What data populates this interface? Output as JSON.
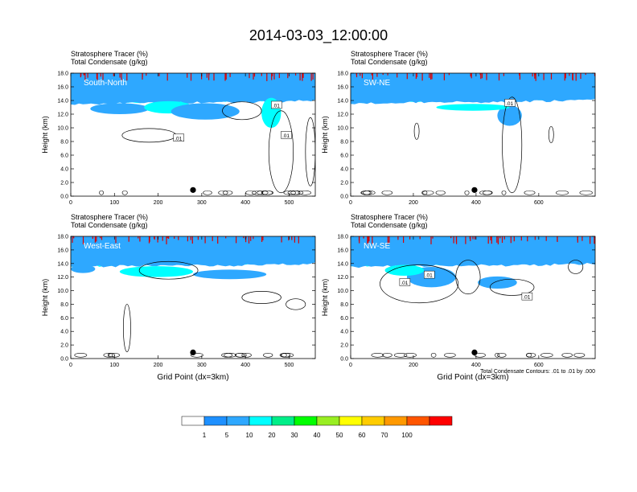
{
  "figure": {
    "title": "2014-03-03_12:00:00",
    "ylabel": "Height (km)",
    "xlabel": "Grid Point (dx=3km)",
    "contour_note": "Total Condensate Contours: .01 to .01 by .000",
    "header_line1": "Stratosphere Tracer   (%)",
    "header_line2": "Total Condensate   (g/kg)"
  },
  "chart_data": [
    {
      "type": "heatmap",
      "panel": "South-North",
      "xlim": [
        0,
        560
      ],
      "xticks": [
        "0",
        "100",
        "200",
        "300",
        "400",
        "500"
      ],
      "ylim": [
        0,
        18
      ],
      "yticks": [
        "0.0",
        "2.0",
        "4.0",
        "6.0",
        "8.0",
        "10.0",
        "12.0",
        "14.0",
        "16.0",
        "18.0"
      ],
      "marker_x": 280,
      "contour_labels": [
        ".01",
        ".01",
        ".01"
      ]
    },
    {
      "type": "heatmap",
      "panel": "SW-NE",
      "xlim": [
        0,
        780
      ],
      "xticks": [
        "0",
        "200",
        "400",
        "600"
      ],
      "ylim": [
        0,
        18
      ],
      "yticks": [
        "0.0",
        "2.0",
        "4.0",
        "6.0",
        "8.0",
        "10.0",
        "12.0",
        "14.0",
        "16.0",
        "18.0"
      ],
      "marker_x": 395,
      "contour_labels": [
        ".01"
      ]
    },
    {
      "type": "heatmap",
      "panel": "West-East",
      "xlim": [
        0,
        560
      ],
      "xticks": [
        "0",
        "100",
        "200",
        "300",
        "400",
        "500"
      ],
      "ylim": [
        0,
        18
      ],
      "yticks": [
        "0.0",
        "2.0",
        "4.0",
        "6.0",
        "8.0",
        "10.0",
        "12.0",
        "14.0",
        "16.0",
        "18.0"
      ],
      "marker_x": 280,
      "contour_labels": []
    },
    {
      "type": "heatmap",
      "panel": "NW-SE",
      "xlim": [
        0,
        780
      ],
      "xticks": [
        "0",
        "200",
        "400",
        "600"
      ],
      "ylim": [
        0,
        18
      ],
      "yticks": [
        "0.0",
        "2.0",
        "4.0",
        "6.0",
        "8.0",
        "10.0",
        "12.0",
        "14.0",
        "16.0",
        "18.0"
      ],
      "marker_x": 395,
      "contour_labels": [
        ".01",
        ".01",
        ".01"
      ]
    }
  ],
  "colorbar": {
    "colors": [
      "#ffffff",
      "#1e90ff",
      "#2ea8ff",
      "#00ffff",
      "#00ee88",
      "#00ff00",
      "#99ee22",
      "#ffff00",
      "#ffcc00",
      "#ff9900",
      "#ff5500",
      "#ff0000"
    ],
    "labels": [
      "1",
      "5",
      "10",
      "20",
      "30",
      "40",
      "50",
      "60",
      "70",
      "100"
    ]
  }
}
